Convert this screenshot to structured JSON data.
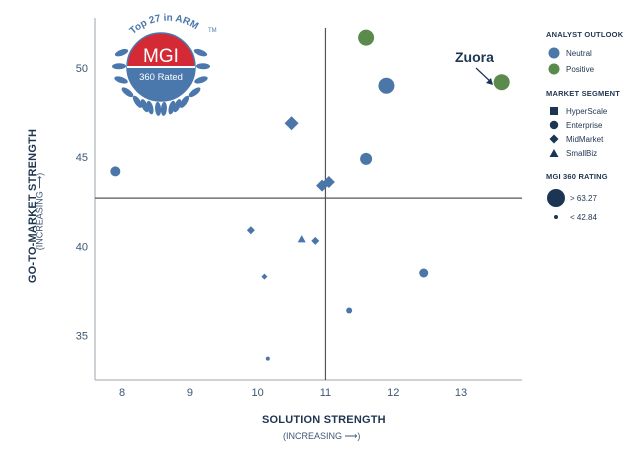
{
  "badge": {
    "arc_text": "Top 27 in ARM",
    "tm": "TM",
    "name": "MGI",
    "rated": "360 Rated"
  },
  "axes": {
    "x_title": "SOLUTION STRENGTH",
    "x_sub": "(INCREASING ⟶)",
    "y_title": "GO-TO-MARKET STRENGTH",
    "y_sub": "(INCREASING ⟶)"
  },
  "legend": {
    "outlook_title": "ANALYST OUTLOOK",
    "outlook_items": [
      {
        "label": "Neutral",
        "color": "#4a76a8"
      },
      {
        "label": "Positive",
        "color": "#5a8a4c"
      }
    ],
    "segment_title": "MARKET SEGMENT",
    "segment_items": [
      {
        "label": "HyperScale",
        "shape": "square"
      },
      {
        "label": "Enterprise",
        "shape": "circle"
      },
      {
        "label": "MidMarket",
        "shape": "diamond"
      },
      {
        "label": "SmallBiz",
        "shape": "triangle"
      }
    ],
    "rating_title": "MGI 360 RATING",
    "rating_items": [
      {
        "label": "> 63.27",
        "size": "large"
      },
      {
        "label": "< 42.84",
        "size": "small"
      }
    ]
  },
  "colors": {
    "neutral": "#4a76a8",
    "positive": "#5a8a4c",
    "axis": "#555555",
    "badge_red": "#d42a35",
    "badge_blue": "#4a78ad",
    "dark_navy": "#1c3553"
  },
  "chart_data": {
    "type": "scatter",
    "xlabel": "SOLUTION STRENGTH",
    "ylabel": "GO-TO-MARKET STRENGTH",
    "xlim": [
      7.6,
      13.9
    ],
    "ylim": [
      32.5,
      52.8
    ],
    "x_ticks": [
      8,
      9,
      10,
      11,
      12,
      13
    ],
    "y_ticks": [
      35,
      40,
      45,
      50
    ],
    "quadrant_lines": {
      "x": 11.0,
      "y": 42.7
    },
    "grid": false,
    "legend_position": "right",
    "annotations": [
      {
        "text": "Zuora",
        "x": 13.6,
        "y": 49.2
      }
    ],
    "points": [
      {
        "x": 11.6,
        "y": 51.7,
        "shape": "circle",
        "outlook": "Positive",
        "size": 8
      },
      {
        "x": 13.6,
        "y": 49.2,
        "shape": "circle",
        "outlook": "Positive",
        "size": 8
      },
      {
        "x": 11.9,
        "y": 49.0,
        "shape": "circle",
        "outlook": "Neutral",
        "size": 8
      },
      {
        "x": 10.5,
        "y": 46.9,
        "shape": "diamond",
        "outlook": "Neutral",
        "size": 7
      },
      {
        "x": 11.6,
        "y": 44.9,
        "shape": "circle",
        "outlook": "Neutral",
        "size": 6
      },
      {
        "x": 7.9,
        "y": 44.2,
        "shape": "circle",
        "outlook": "Neutral",
        "size": 5
      },
      {
        "x": 11.05,
        "y": 43.6,
        "shape": "diamond",
        "outlook": "Neutral",
        "size": 6
      },
      {
        "x": 10.95,
        "y": 43.4,
        "shape": "diamond",
        "outlook": "Neutral",
        "size": 6
      },
      {
        "x": 9.9,
        "y": 40.9,
        "shape": "diamond",
        "outlook": "Neutral",
        "size": 4
      },
      {
        "x": 10.65,
        "y": 40.4,
        "shape": "triangle",
        "outlook": "Neutral",
        "size": 4
      },
      {
        "x": 10.85,
        "y": 40.3,
        "shape": "diamond",
        "outlook": "Neutral",
        "size": 4
      },
      {
        "x": 12.45,
        "y": 38.5,
        "shape": "circle",
        "outlook": "Neutral",
        "size": 4.5
      },
      {
        "x": 10.1,
        "y": 38.3,
        "shape": "diamond",
        "outlook": "Neutral",
        "size": 3
      },
      {
        "x": 11.35,
        "y": 36.4,
        "shape": "circle",
        "outlook": "Neutral",
        "size": 3
      },
      {
        "x": 10.15,
        "y": 33.7,
        "shape": "circle",
        "outlook": "Neutral",
        "size": 2
      }
    ]
  }
}
